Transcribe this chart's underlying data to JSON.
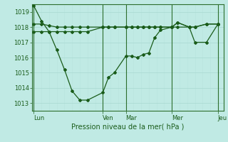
{
  "title": "Pression niveau de la mer( hPa )",
  "bg_color": "#c0eae4",
  "grid_major_color": "#a8d8d0",
  "grid_minor_color": "#b8e4de",
  "line_color": "#1a5c1a",
  "vline_color": "#2d6e2d",
  "ylim": [
    1012.5,
    1019.5
  ],
  "yticks": [
    1013,
    1014,
    1015,
    1016,
    1017,
    1018,
    1019
  ],
  "day_labels": [
    "Lun",
    "Ven",
    "Mar",
    "Mer",
    "Jeu"
  ],
  "day_positions": [
    0.0,
    0.375,
    0.5,
    0.75,
    1.0
  ],
  "series1_x": [
    0.0,
    0.042,
    0.083,
    0.125,
    0.167,
    0.208,
    0.25,
    0.292,
    0.375,
    0.406,
    0.438,
    0.5,
    0.531,
    0.563,
    0.594,
    0.625,
    0.656,
    0.688,
    0.75,
    0.781,
    0.844,
    0.875,
    0.938,
    1.0
  ],
  "series1_y": [
    1019.4,
    1018.4,
    1017.7,
    1016.5,
    1015.2,
    1013.8,
    1013.2,
    1013.2,
    1013.7,
    1014.7,
    1015.0,
    1016.1,
    1016.1,
    1016.0,
    1016.2,
    1016.3,
    1017.3,
    1017.8,
    1018.0,
    1018.3,
    1018.0,
    1017.0,
    1017.0,
    1018.2
  ],
  "series2_x": [
    0.0,
    0.042,
    0.083,
    0.125,
    0.167,
    0.208,
    0.25,
    0.292,
    0.375,
    0.406,
    0.438,
    0.5,
    0.531,
    0.563,
    0.594,
    0.625,
    0.656,
    0.688,
    0.75,
    0.781,
    0.844,
    0.875,
    0.938,
    1.0
  ],
  "series2_y": [
    1018.2,
    1018.2,
    1018.1,
    1018.0,
    1018.0,
    1018.0,
    1018.0,
    1018.0,
    1018.0,
    1018.0,
    1018.0,
    1018.0,
    1018.0,
    1018.0,
    1018.0,
    1018.0,
    1018.0,
    1018.0,
    1018.0,
    1018.3,
    1018.0,
    1018.0,
    1018.2,
    1018.2
  ],
  "series3_x": [
    0.0,
    0.042,
    0.083,
    0.125,
    0.167,
    0.208,
    0.25,
    0.292,
    0.375,
    0.406,
    0.438,
    0.5,
    0.531,
    0.563,
    0.594,
    0.625,
    0.656,
    0.688,
    0.75,
    0.781,
    0.844,
    0.875,
    0.938,
    1.0
  ],
  "series3_y": [
    1017.7,
    1017.7,
    1017.7,
    1017.7,
    1017.7,
    1017.7,
    1017.7,
    1017.7,
    1018.0,
    1018.0,
    1018.0,
    1018.0,
    1018.0,
    1018.0,
    1018.0,
    1018.0,
    1018.0,
    1018.0,
    1018.0,
    1018.0,
    1018.0,
    1018.0,
    1018.2,
    1018.2
  ],
  "minor_xticks_count": 24,
  "title_fontsize": 7,
  "tick_labelsize": 6,
  "marker_size": 2.0,
  "linewidth": 0.9
}
